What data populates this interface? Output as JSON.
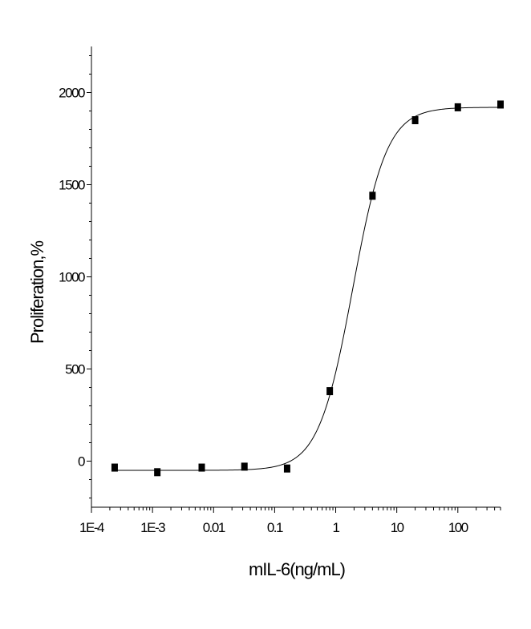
{
  "chart_data": {
    "type": "scatter",
    "title": "",
    "xlabel": "mIL-6(ng/mL)",
    "ylabel": "Proliferation,%",
    "x_scale": "log",
    "xlim": [
      0.0001,
      500
    ],
    "ylim": [
      -250,
      2250
    ],
    "x_ticks": [
      {
        "value": 0.0001,
        "label": "1E-4"
      },
      {
        "value": 0.001,
        "label": "1E-3"
      },
      {
        "value": 0.01,
        "label": "0.01"
      },
      {
        "value": 0.1,
        "label": "0.1"
      },
      {
        "value": 1,
        "label": "1"
      },
      {
        "value": 10,
        "label": "10"
      },
      {
        "value": 100,
        "label": "100"
      }
    ],
    "y_ticks": [
      {
        "value": 0,
        "label": "0"
      },
      {
        "value": 500,
        "label": "500"
      },
      {
        "value": 1000,
        "label": "1000"
      },
      {
        "value": 1500,
        "label": "1500"
      },
      {
        "value": 2000,
        "label": "2000"
      }
    ],
    "grid": false,
    "legend": "none",
    "colors": {
      "points": "#000000",
      "curve": "#000000",
      "axes": "#000000"
    },
    "series": [
      {
        "marker": "square",
        "points": [
          {
            "x": 0.00024,
            "y": -35
          },
          {
            "x": 0.0012,
            "y": -60
          },
          {
            "x": 0.0064,
            "y": -35
          },
          {
            "x": 0.032,
            "y": -30
          },
          {
            "x": 0.16,
            "y": -40
          },
          {
            "x": 0.8,
            "y": 380
          },
          {
            "x": 4,
            "y": 1440
          },
          {
            "x": 20,
            "y": 1850
          },
          {
            "x": 100,
            "y": 1920
          },
          {
            "x": 500,
            "y": 1935
          }
        ]
      }
    ],
    "fit_curve": {
      "model": "4PL",
      "bottom": -50,
      "top": 1920,
      "ec50": 1.9,
      "hill": 1.55
    }
  }
}
